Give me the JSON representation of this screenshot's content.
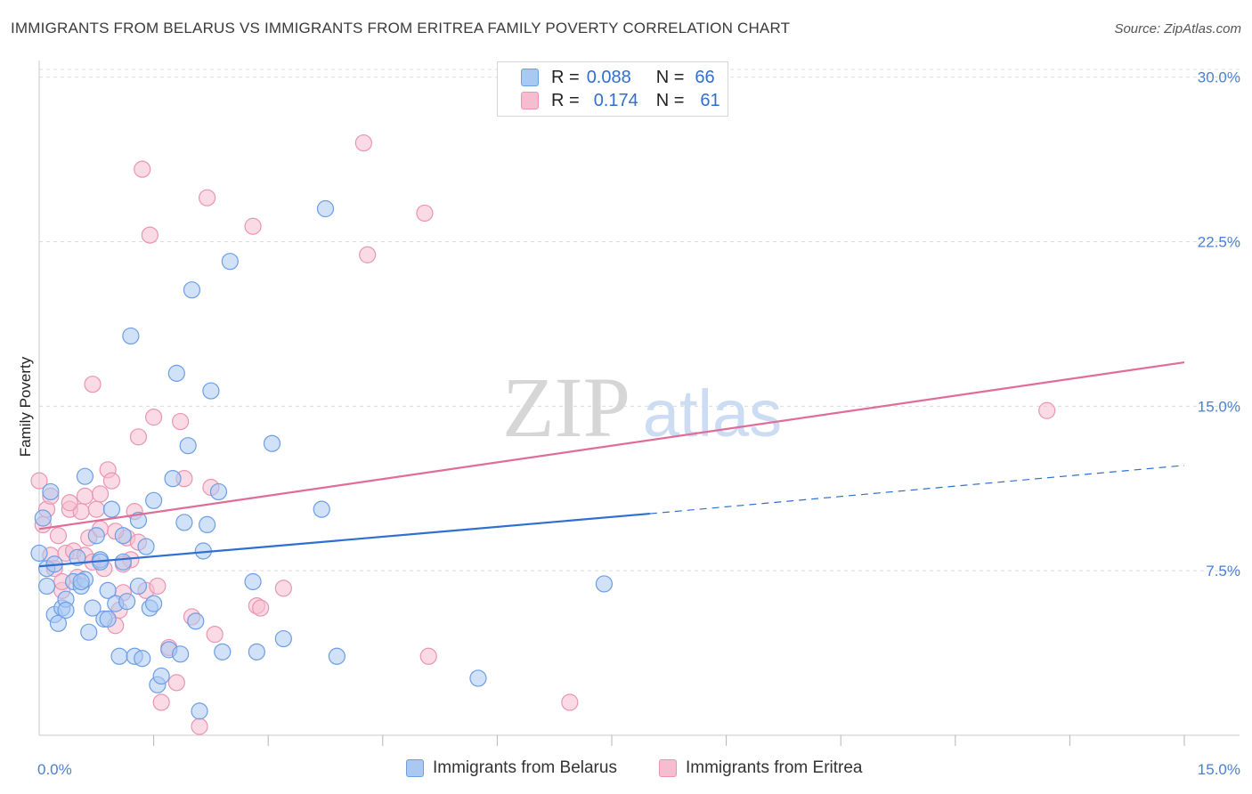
{
  "header": {
    "title": "IMMIGRANTS FROM BELARUS VS IMMIGRANTS FROM ERITREA FAMILY POVERTY CORRELATION CHART",
    "source": "Source: ZipAtlas.com"
  },
  "watermark": {
    "zip": "ZIP",
    "atlas": "atlas"
  },
  "legend": {
    "rows": [
      {
        "r_label": "R =",
        "r_value": "0.088",
        "n_label": "N =",
        "n_value": "66"
      },
      {
        "r_label": "R =",
        "r_value": "0.174",
        "n_label": "N =",
        "n_value": "61"
      }
    ]
  },
  "bottom_legend": {
    "belarus": "Immigrants from Belarus",
    "eritrea": "Immigrants from Eritrea"
  },
  "colors": {
    "belarus_fill": "#a9c8f2",
    "belarus_stroke": "#6c9ee4",
    "belarus_line": "#2f6fd0",
    "eritrea_fill": "#f6bdd0",
    "eritrea_stroke": "#ea94b2",
    "eritrea_line": "#e06d97",
    "grid": "#dcdcdc",
    "tick_text": "#4a7fd4"
  },
  "chart_data": {
    "type": "scatter",
    "title": "IMMIGRANTS FROM BELARUS VS IMMIGRANTS FROM ERITREA FAMILY POVERTY CORRELATION CHART",
    "xlabel": "",
    "ylabel": "Family Poverty",
    "xlim": [
      0,
      15
    ],
    "ylim": [
      0,
      31
    ],
    "x_tick_labels": [
      {
        "value": 0,
        "label": "0.0%"
      },
      {
        "value": 15,
        "label": "15.0%"
      }
    ],
    "y_ticks": [
      {
        "value": 7.5,
        "label": "7.5%"
      },
      {
        "value": 15,
        "label": "15.0%"
      },
      {
        "value": 22.5,
        "label": "22.5%"
      },
      {
        "value": 30,
        "label": "30.0%"
      }
    ],
    "x_minor_ticks": [
      1.5,
      3.0,
      4.5,
      6.0,
      7.5,
      9.0,
      10.5,
      12.0,
      13.5,
      15.0
    ],
    "series": [
      {
        "name": "Immigrants from Belarus",
        "color": "#6c9ee4",
        "points": [
          [
            0.0,
            8.3
          ],
          [
            0.05,
            9.9
          ],
          [
            0.1,
            7.6
          ],
          [
            0.15,
            11.1
          ],
          [
            0.2,
            5.5
          ],
          [
            0.25,
            5.1
          ],
          [
            0.3,
            5.8
          ],
          [
            0.35,
            6.2
          ],
          [
            0.45,
            7.0
          ],
          [
            0.5,
            8.1
          ],
          [
            0.55,
            6.8
          ],
          [
            0.6,
            7.1
          ],
          [
            0.65,
            4.7
          ],
          [
            0.7,
            5.8
          ],
          [
            0.75,
            9.1
          ],
          [
            0.8,
            8.0
          ],
          [
            0.85,
            5.3
          ],
          [
            0.9,
            6.6
          ],
          [
            0.95,
            10.3
          ],
          [
            1.0,
            6.0
          ],
          [
            1.05,
            3.6
          ],
          [
            1.1,
            7.9
          ],
          [
            1.15,
            6.1
          ],
          [
            1.2,
            18.2
          ],
          [
            1.25,
            3.6
          ],
          [
            1.3,
            9.8
          ],
          [
            1.35,
            3.5
          ],
          [
            1.4,
            8.6
          ],
          [
            1.45,
            5.8
          ],
          [
            1.5,
            6.0
          ],
          [
            1.55,
            2.3
          ],
          [
            1.6,
            2.7
          ],
          [
            1.7,
            3.9
          ],
          [
            1.75,
            11.7
          ],
          [
            1.8,
            16.5
          ],
          [
            1.85,
            3.7
          ],
          [
            1.9,
            9.7
          ],
          [
            1.95,
            13.2
          ],
          [
            2.0,
            20.3
          ],
          [
            2.05,
            5.2
          ],
          [
            2.1,
            1.1
          ],
          [
            2.15,
            8.4
          ],
          [
            2.2,
            9.6
          ],
          [
            2.25,
            15.7
          ],
          [
            2.35,
            11.1
          ],
          [
            2.4,
            3.8
          ],
          [
            2.5,
            21.6
          ],
          [
            2.8,
            7.0
          ],
          [
            2.85,
            3.8
          ],
          [
            3.05,
            13.3
          ],
          [
            3.2,
            4.4
          ],
          [
            3.75,
            24.0
          ],
          [
            3.7,
            10.3
          ],
          [
            3.9,
            3.6
          ],
          [
            5.75,
            2.6
          ],
          [
            7.4,
            6.9
          ],
          [
            0.1,
            6.8
          ],
          [
            0.35,
            5.7
          ],
          [
            0.55,
            7.0
          ],
          [
            0.6,
            11.8
          ],
          [
            0.9,
            5.3
          ],
          [
            1.1,
            9.1
          ],
          [
            1.3,
            6.8
          ],
          [
            1.5,
            10.7
          ],
          [
            0.2,
            7.8
          ],
          [
            0.8,
            7.9
          ]
        ],
        "trend": {
          "x0": 0.0,
          "y0": 7.7,
          "x1": 8.0,
          "y1": 10.1,
          "dash_x1": 15.0,
          "dash_y1": 12.3
        }
      },
      {
        "name": "Immigrants from Eritrea",
        "color": "#ea94b2",
        "points": [
          [
            0.0,
            11.6
          ],
          [
            0.05,
            9.6
          ],
          [
            0.1,
            10.3
          ],
          [
            0.15,
            8.2
          ],
          [
            0.2,
            7.6
          ],
          [
            0.25,
            9.1
          ],
          [
            0.3,
            6.6
          ],
          [
            0.35,
            8.3
          ],
          [
            0.4,
            10.3
          ],
          [
            0.45,
            8.4
          ],
          [
            0.5,
            7.2
          ],
          [
            0.55,
            10.2
          ],
          [
            0.6,
            10.9
          ],
          [
            0.65,
            9.0
          ],
          [
            0.7,
            16.0
          ],
          [
            0.75,
            10.3
          ],
          [
            0.8,
            9.4
          ],
          [
            0.85,
            7.6
          ],
          [
            0.9,
            12.1
          ],
          [
            0.95,
            11.6
          ],
          [
            1.0,
            5.0
          ],
          [
            1.05,
            5.7
          ],
          [
            1.1,
            6.5
          ],
          [
            1.15,
            9.0
          ],
          [
            1.2,
            8.0
          ],
          [
            1.25,
            10.2
          ],
          [
            1.3,
            13.6
          ],
          [
            1.35,
            25.8
          ],
          [
            1.4,
            6.6
          ],
          [
            1.45,
            22.8
          ],
          [
            1.5,
            14.5
          ],
          [
            1.55,
            6.8
          ],
          [
            1.6,
            1.5
          ],
          [
            1.7,
            4.0
          ],
          [
            1.8,
            2.4
          ],
          [
            1.85,
            14.3
          ],
          [
            1.9,
            11.7
          ],
          [
            2.0,
            5.4
          ],
          [
            2.1,
            0.4
          ],
          [
            2.2,
            24.5
          ],
          [
            2.25,
            11.3
          ],
          [
            2.3,
            4.6
          ],
          [
            2.8,
            23.2
          ],
          [
            2.85,
            5.9
          ],
          [
            2.9,
            5.8
          ],
          [
            3.2,
            6.7
          ],
          [
            4.25,
            27.0
          ],
          [
            4.3,
            21.9
          ],
          [
            5.05,
            23.8
          ],
          [
            5.1,
            3.6
          ],
          [
            6.95,
            1.5
          ],
          [
            13.2,
            14.8
          ],
          [
            0.3,
            7.0
          ],
          [
            0.6,
            8.2
          ],
          [
            0.8,
            11.0
          ],
          [
            1.0,
            9.3
          ],
          [
            1.1,
            7.8
          ],
          [
            1.3,
            8.8
          ],
          [
            0.4,
            10.6
          ],
          [
            0.7,
            7.9
          ],
          [
            0.15,
            10.9
          ]
        ],
        "trend": {
          "x0": 0.0,
          "y0": 9.4,
          "x1": 15.0,
          "y1": 17.0
        }
      }
    ]
  }
}
